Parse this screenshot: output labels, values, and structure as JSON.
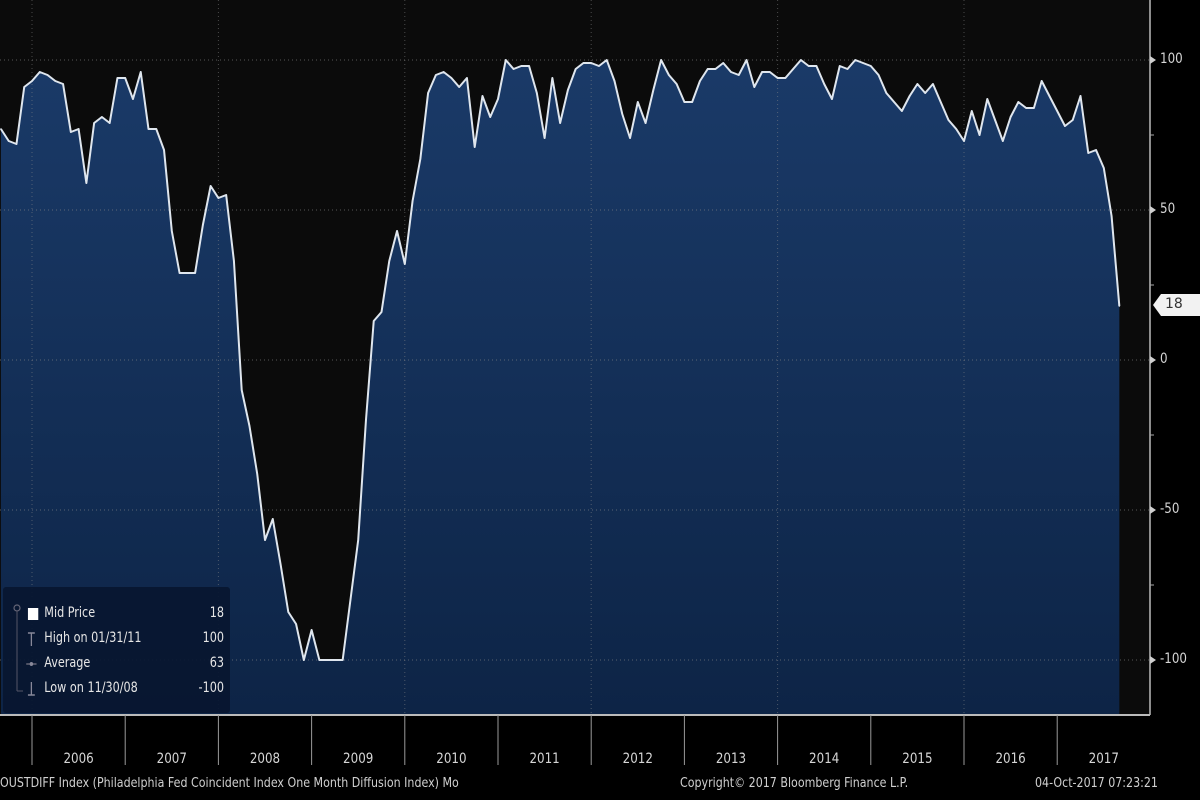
{
  "chart_data": {
    "type": "area",
    "ylim": [
      -120,
      120
    ],
    "yticks": [
      100,
      50,
      0,
      -50,
      -100
    ],
    "xtick_labels": [
      "2006",
      "2007",
      "2008",
      "2009",
      "2010",
      "2011",
      "2012",
      "2013",
      "2014",
      "2015",
      "2016",
      "2017"
    ],
    "grid": true,
    "legend_placement": "bottom-left",
    "colors": {
      "fill": "#15325e",
      "line": "#dfe6ee",
      "background": "#0a0a0a"
    },
    "last_value_tag": "18",
    "series": [
      {
        "name": "Mid Price",
        "x": [
          "2005-08",
          "2005-09",
          "2005-10",
          "2005-11",
          "2005-12",
          "2006-01",
          "2006-02",
          "2006-03",
          "2006-04",
          "2006-05",
          "2006-06",
          "2006-07",
          "2006-08",
          "2006-09",
          "2006-10",
          "2006-11",
          "2006-12",
          "2007-01",
          "2007-02",
          "2007-03",
          "2007-04",
          "2007-05",
          "2007-06",
          "2007-07",
          "2007-08",
          "2007-09",
          "2007-10",
          "2007-11",
          "2007-12",
          "2008-01",
          "2008-02",
          "2008-03",
          "2008-04",
          "2008-05",
          "2008-06",
          "2008-07",
          "2008-08",
          "2008-09",
          "2008-10",
          "2008-11",
          "2008-12",
          "2009-01",
          "2009-02",
          "2009-03",
          "2009-04",
          "2009-05",
          "2009-06",
          "2009-07",
          "2009-08",
          "2009-09",
          "2009-10",
          "2009-11",
          "2009-12",
          "2010-01",
          "2010-02",
          "2010-03",
          "2010-04",
          "2010-05",
          "2010-06",
          "2010-07",
          "2010-08",
          "2010-09",
          "2010-10",
          "2010-11",
          "2010-12",
          "2011-01",
          "2011-02",
          "2011-03",
          "2011-04",
          "2011-05",
          "2011-06",
          "2011-07",
          "2011-08",
          "2011-09",
          "2011-10",
          "2011-11",
          "2011-12",
          "2012-01",
          "2012-02",
          "2012-03",
          "2012-04",
          "2012-05",
          "2012-06",
          "2012-07",
          "2012-08",
          "2012-09",
          "2012-10",
          "2012-11",
          "2012-12",
          "2013-01",
          "2013-02",
          "2013-03",
          "2013-04",
          "2013-05",
          "2013-06",
          "2013-07",
          "2013-08",
          "2013-09",
          "2013-10",
          "2013-11",
          "2013-12",
          "2014-01",
          "2014-02",
          "2014-03",
          "2014-04",
          "2014-05",
          "2014-06",
          "2014-07",
          "2014-08",
          "2014-09",
          "2014-10",
          "2014-11",
          "2014-12",
          "2015-01",
          "2015-02",
          "2015-03",
          "2015-04",
          "2015-05",
          "2015-06",
          "2015-07",
          "2015-08",
          "2015-09",
          "2015-10",
          "2015-11",
          "2015-12",
          "2016-01",
          "2016-02",
          "2016-03",
          "2016-04",
          "2016-05",
          "2016-06",
          "2016-07",
          "2016-08",
          "2016-09",
          "2016-10",
          "2016-11",
          "2016-12",
          "2017-01",
          "2017-02",
          "2017-03",
          "2017-04",
          "2017-05",
          "2017-06",
          "2017-07",
          "2017-08"
        ],
        "y": [
          77,
          73,
          72,
          91,
          93,
          96,
          95,
          93,
          92,
          76,
          77,
          59,
          79,
          81,
          79,
          94,
          94,
          87,
          96,
          77,
          77,
          70,
          43,
          29,
          29,
          29,
          45,
          58,
          54,
          55,
          33,
          -10,
          -22,
          -38,
          -60,
          -53,
          -68,
          -84,
          -88,
          -100,
          -90,
          -100,
          -100,
          -100,
          -100,
          -80,
          -60,
          -20,
          13,
          16,
          33,
          43,
          32,
          53,
          67,
          89,
          95,
          96,
          94,
          91,
          94,
          71,
          88,
          81,
          87,
          100,
          97,
          98,
          98,
          89,
          74,
          94,
          79,
          90,
          97,
          99,
          99,
          98,
          100,
          93,
          82,
          74,
          86,
          79,
          90,
          100,
          95,
          92,
          86,
          86,
          93,
          97,
          97,
          99,
          96,
          95,
          100,
          91,
          96,
          96,
          94,
          94,
          97,
          100,
          98,
          98,
          92,
          87,
          98,
          97,
          100,
          99,
          98,
          95,
          89,
          86,
          83,
          88,
          92,
          89,
          92,
          86,
          80,
          77,
          73,
          83,
          75,
          87,
          80,
          73,
          81,
          86,
          84,
          84,
          93,
          88,
          83,
          78,
          80,
          88,
          69,
          70,
          64,
          48,
          18
        ]
      }
    ]
  },
  "legend": {
    "items": [
      {
        "label": "Mid Price",
        "value": "18",
        "icon": "white-square"
      },
      {
        "label": "High on 01/31/11",
        "value": "100",
        "icon": "high-marker"
      },
      {
        "label": "Average",
        "value": "63",
        "icon": "average-marker"
      },
      {
        "label": "Low on 11/30/08",
        "value": "-100",
        "icon": "low-marker"
      }
    ]
  },
  "footer": {
    "description": "OUSTDIFF Index (Philadelphia Fed Coincident Index One Month Diffusion Index)  Mo",
    "copyright": "Copyright© 2017 Bloomberg Finance L.P.",
    "timestamp": "04-Oct-2017 07:23:21"
  }
}
